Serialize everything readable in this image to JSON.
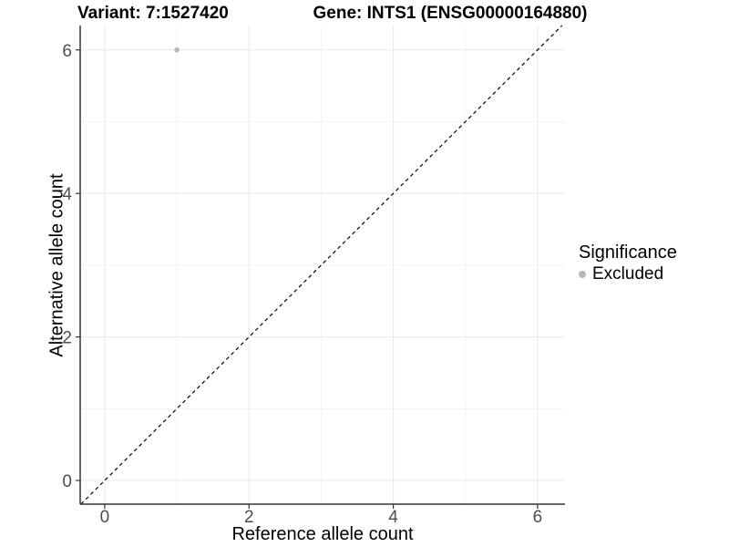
{
  "titles": {
    "variant": "Variant: 7:1527420",
    "gene": "Gene: INTS1 (ENSG00000164880)"
  },
  "legend": {
    "title": "Significance",
    "items": [
      {
        "label": "Excluded",
        "color": "#b8b8b8"
      }
    ]
  },
  "colors": {
    "background": "#ffffff",
    "grid_major": "#e8e8e8",
    "grid_minor": "#f3f3f3",
    "axis": "#333333",
    "tick_label": "#4d4d4d",
    "reference_line": "#000000"
  },
  "chart_data": {
    "type": "scatter",
    "title": "Variant: 7:1527420 — Gene: INTS1 (ENSG00000164880)",
    "xlabel": "Reference allele count",
    "ylabel": "Alternative allele count",
    "xlim": [
      -0.34,
      6.38
    ],
    "ylim": [
      -0.33,
      6.34
    ],
    "x_ticks": [
      0,
      2,
      4,
      6
    ],
    "y_ticks": [
      0,
      2,
      4,
      6
    ],
    "x_minor_ticks": [
      1,
      3,
      5
    ],
    "y_minor_ticks": [
      1,
      3,
      5
    ],
    "grid": true,
    "legend_position": "right",
    "reference_line": {
      "type": "identity",
      "slope": 1,
      "intercept": 0,
      "style": "dashed",
      "color": "#000000"
    },
    "series": [
      {
        "name": "Excluded",
        "color": "#b8b8b8",
        "points": [
          {
            "x": 1,
            "y": 6
          }
        ]
      }
    ]
  }
}
